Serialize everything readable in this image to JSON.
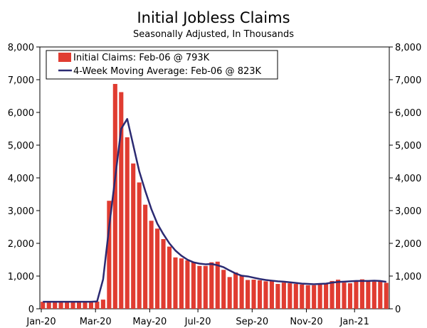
{
  "chart_data": {
    "type": "bar",
    "title": "Initial Jobless Claims",
    "subtitle": "Seasonally Adjusted, In Thousands",
    "xlabel": "",
    "ylabel": "",
    "ylim": [
      0,
      8000
    ],
    "y_ticks": [
      "0",
      "1,000",
      "2,000",
      "3,000",
      "4,000",
      "5,000",
      "6,000",
      "7,000",
      "8,000"
    ],
    "y_tick_values": [
      0,
      1000,
      2000,
      3000,
      4000,
      5000,
      6000,
      7000,
      8000
    ],
    "x_tick_labels": [
      "Jan-20",
      "Mar-20",
      "May-20",
      "Jul-20",
      "Sep-20",
      "Nov-20",
      "Jan-21"
    ],
    "x_tick_positions": [
      0,
      9,
      18,
      26,
      35,
      44,
      52
    ],
    "grid": false,
    "legend_position": "top-left",
    "weeks": 58,
    "series": [
      {
        "name": "Initial Claims: Feb-06 @ 793K",
        "type": "bar",
        "color": "#e03c31",
        "values": [
          215,
          220,
          210,
          212,
          210,
          215,
          220,
          215,
          215,
          220,
          280,
          3300,
          6870,
          6620,
          5240,
          4440,
          3860,
          3180,
          2690,
          2450,
          2130,
          1900,
          1570,
          1540,
          1480,
          1420,
          1310,
          1310,
          1420,
          1440,
          1190,
          970,
          1110,
          1010,
          880,
          890,
          870,
          840,
          870,
          760,
          800,
          780,
          760,
          740,
          720,
          720,
          740,
          780,
          850,
          890,
          800,
          780,
          830,
          900,
          840,
          830,
          840,
          793
        ]
      },
      {
        "name": "4-Week Moving Average: Feb-06 @ 823K",
        "type": "line",
        "color": "#2b2a72",
        "values": [
          215,
          215,
          215,
          215,
          215,
          215,
          215,
          215,
          215,
          225,
          900,
          2500,
          4000,
          5500,
          5800,
          5000,
          4200,
          3600,
          3050,
          2600,
          2280,
          2000,
          1780,
          1620,
          1500,
          1420,
          1380,
          1360,
          1370,
          1330,
          1270,
          1170,
          1080,
          1010,
          990,
          950,
          910,
          880,
          860,
          840,
          830,
          810,
          790,
          770,
          760,
          750,
          760,
          770,
          800,
          820,
          830,
          840,
          850,
          850,
          850,
          860,
          850,
          823
        ]
      }
    ]
  }
}
